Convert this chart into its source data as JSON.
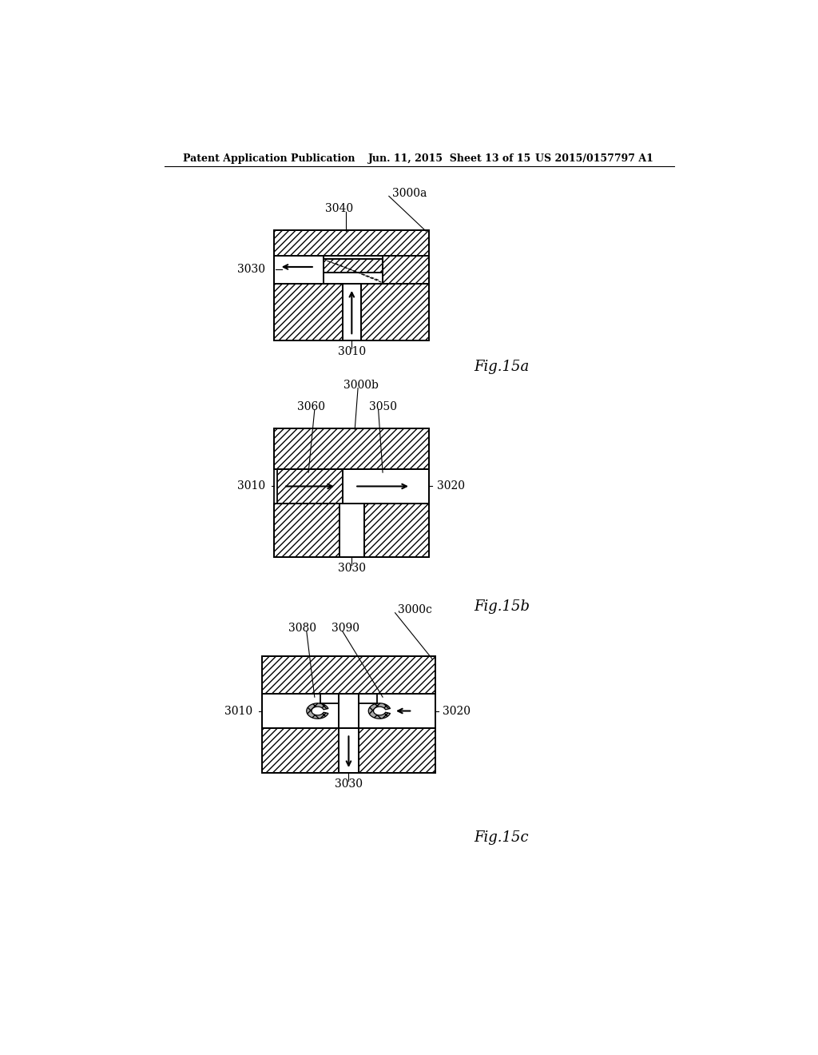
{
  "bg_color": "#ffffff",
  "header_left": "Patent Application Publication",
  "header_mid": "Jun. 11, 2015  Sheet 13 of 15",
  "header_right": "US 2015/0157797 A1",
  "fig15a_label": "Fig.15a",
  "fig15b_label": "Fig.15b",
  "fig15c_label": "Fig.15c",
  "line_color": "#000000",
  "hatch": "////"
}
